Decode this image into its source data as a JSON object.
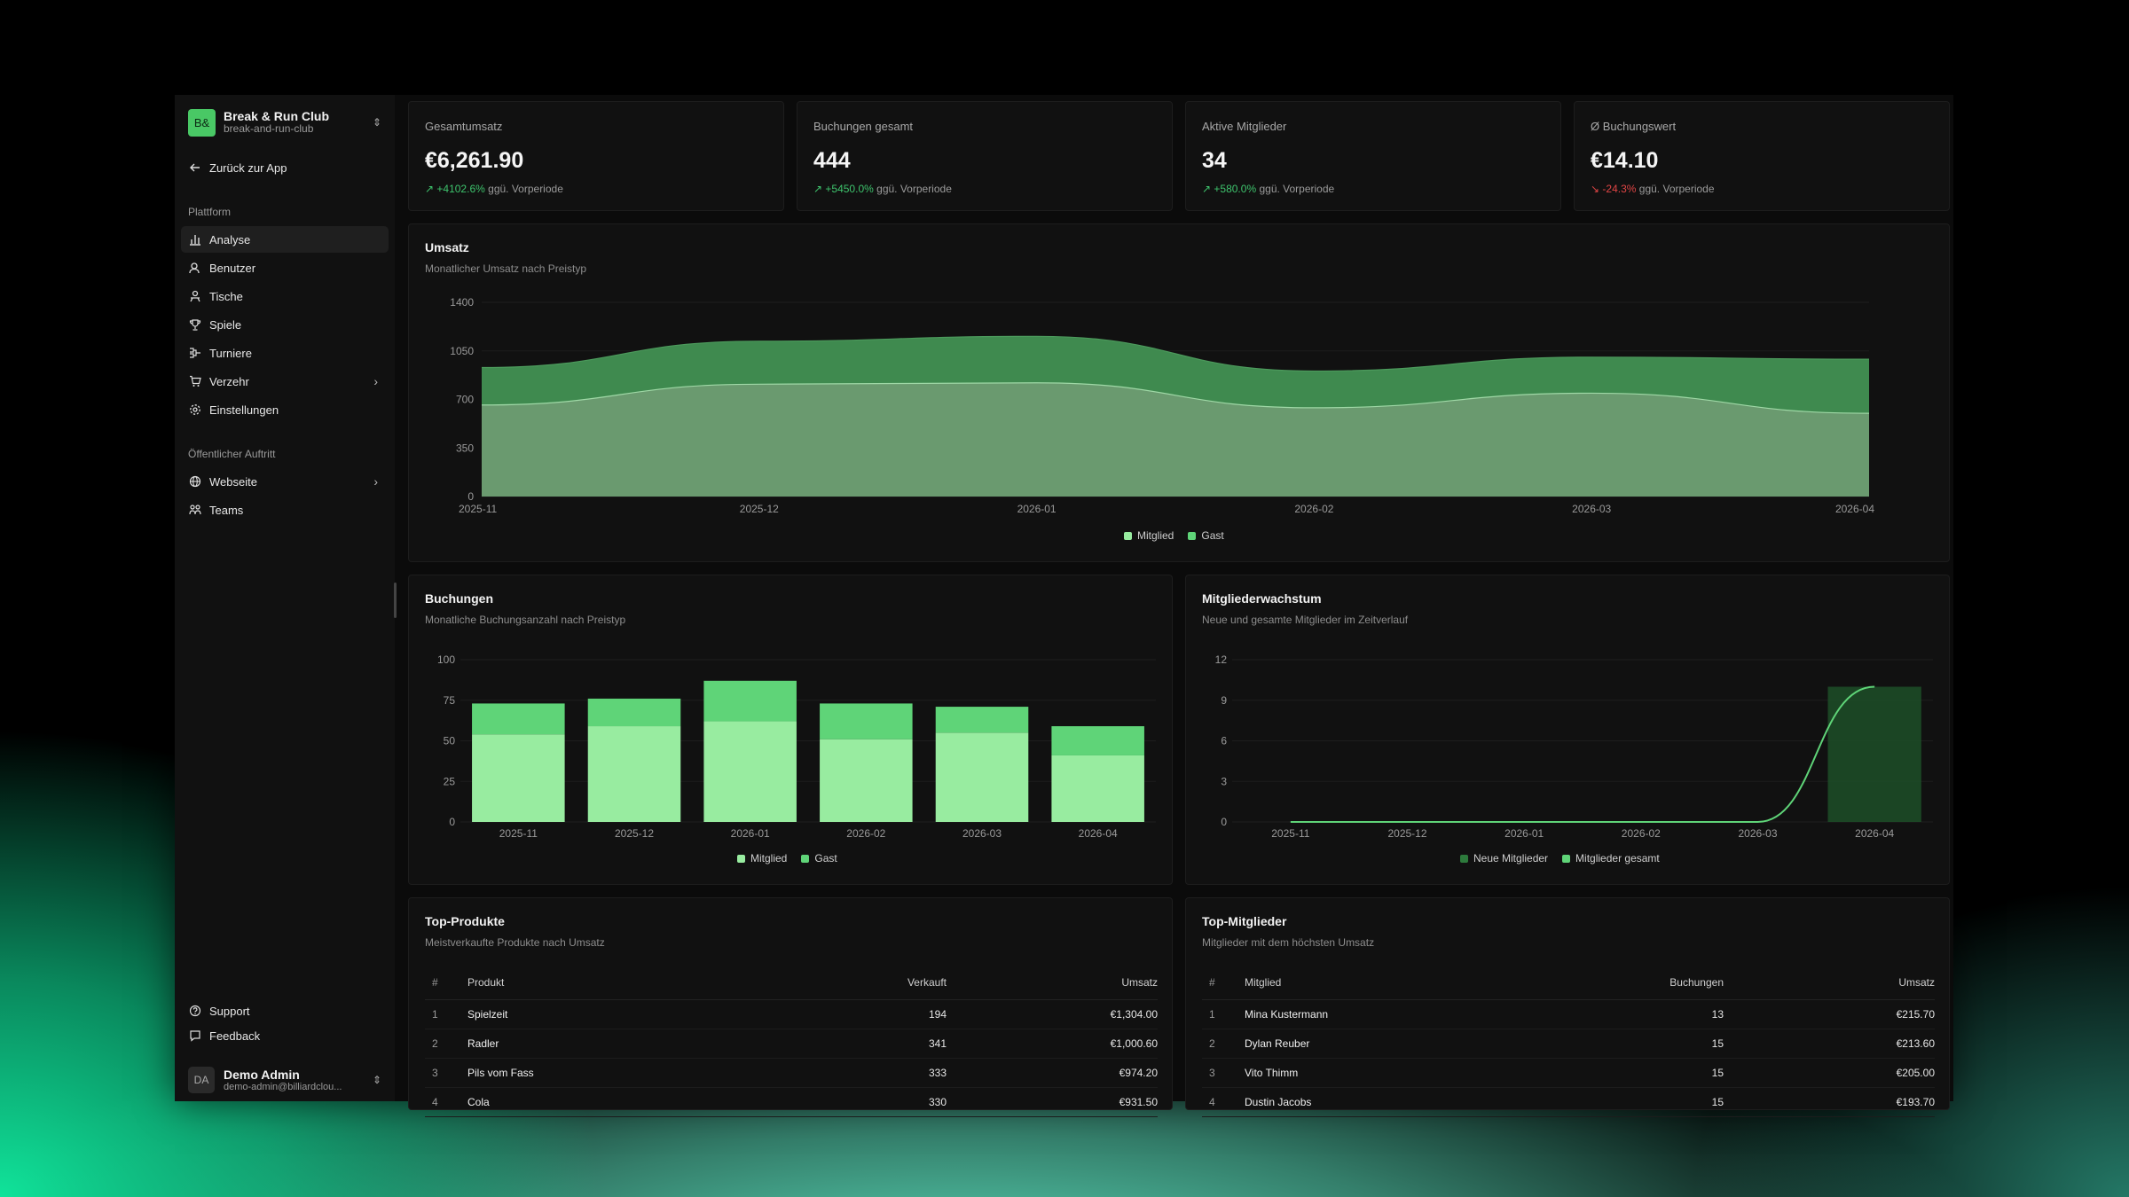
{
  "team": {
    "logo": "B&",
    "name": "Break & Run Club",
    "slug": "break-and-run-club"
  },
  "back_label": "Zurück zur App",
  "sidebar": {
    "platform_label": "Plattform",
    "platform_items": [
      {
        "label": "Analyse",
        "icon": "bar-chart-icon"
      },
      {
        "label": "Benutzer",
        "icon": "users-icon"
      },
      {
        "label": "Tische",
        "icon": "table-icon"
      },
      {
        "label": "Spiele",
        "icon": "trophy-icon"
      },
      {
        "label": "Turniere",
        "icon": "bracket-icon"
      },
      {
        "label": "Verzehr",
        "icon": "cart-icon"
      },
      {
        "label": "Einstellungen",
        "icon": "gear-icon"
      }
    ],
    "public_label": "Öffentlicher Auftritt",
    "public_items": [
      {
        "label": "Webseite",
        "icon": "globe-icon"
      },
      {
        "label": "Teams",
        "icon": "team-icon"
      }
    ],
    "support_label": "Support",
    "feedback_label": "Feedback"
  },
  "user": {
    "initials": "DA",
    "name": "Demo Admin",
    "email": "demo-admin@billiardclou..."
  },
  "kpis": [
    {
      "title": "Gesamtumsatz",
      "value": "€6,261.90",
      "delta": "+4102.6%",
      "trend": "up",
      "suffix": "ggü. Vorperiode"
    },
    {
      "title": "Buchungen gesamt",
      "value": "444",
      "delta": "+5450.0%",
      "trend": "up",
      "suffix": "ggü. Vorperiode"
    },
    {
      "title": "Aktive Mitglieder",
      "value": "34",
      "delta": "+580.0%",
      "trend": "up",
      "suffix": "ggü. Vorperiode"
    },
    {
      "title": "Ø Buchungswert",
      "value": "€14.10",
      "delta": "-24.3%",
      "trend": "down",
      "suffix": "ggü. Vorperiode"
    }
  ],
  "revenue": {
    "title": "Umsatz",
    "subtitle": "Monatlicher Umsatz nach Preistyp"
  },
  "bookings": {
    "title": "Buchungen",
    "subtitle": "Monatliche Buchungsanzahl nach Preistyp"
  },
  "growth": {
    "title": "Mitgliederwachstum",
    "subtitle": "Neue und gesamte Mitglieder im Zeitverlauf"
  },
  "chart_data": [
    {
      "id": "revenue",
      "type": "area",
      "stacked": true,
      "categories": [
        "2025-11",
        "2025-12",
        "2026-01",
        "2026-02",
        "2026-03",
        "2026-04"
      ],
      "series": [
        {
          "name": "Mitglied",
          "values": [
            270,
            310,
            335,
            265,
            260,
            390
          ],
          "color": "#3f8a4f"
        },
        {
          "name": "Gast",
          "values": [
            660,
            810,
            820,
            640,
            745,
            600
          ],
          "color": "#6a9a6f"
        }
      ],
      "ylim": [
        0,
        1400
      ],
      "yticks": [
        0,
        350,
        700,
        1050,
        1400
      ],
      "grid": true,
      "legend": "bottom"
    },
    {
      "id": "bookings",
      "type": "bar",
      "stacked": true,
      "categories": [
        "2025-11",
        "2025-12",
        "2026-01",
        "2026-02",
        "2026-03",
        "2026-04"
      ],
      "series": [
        {
          "name": "Mitglied",
          "values": [
            54,
            59,
            62,
            51,
            55,
            41
          ],
          "color": "#98eca0"
        },
        {
          "name": "Gast",
          "values": [
            19,
            17,
            25,
            22,
            16,
            18
          ],
          "color": "#5fd478"
        }
      ],
      "ylim": [
        0,
        100
      ],
      "yticks": [
        0,
        25,
        50,
        75,
        100
      ],
      "legend": "bottom"
    },
    {
      "id": "growth",
      "type": "bar",
      "categories": [
        "2025-11",
        "2025-12",
        "2026-01",
        "2026-02",
        "2026-03",
        "2026-04"
      ],
      "series": [
        {
          "name": "Neue Mitglieder",
          "values": [
            0,
            0,
            0,
            0,
            0,
            10
          ],
          "color": "#1d4f28"
        },
        {
          "name": "Mitglieder gesamt",
          "values": [
            0,
            0,
            0,
            0,
            0,
            10
          ],
          "color": "#5fd478"
        }
      ],
      "ylim": [
        0,
        12
      ],
      "yticks": [
        0,
        3,
        6,
        9,
        12
      ],
      "legend": "bottom"
    }
  ],
  "top_products": {
    "title": "Top-Produkte",
    "subtitle": "Meistverkaufte Produkte nach Umsatz",
    "headers": [
      "#",
      "Produkt",
      "Verkauft",
      "Umsatz"
    ],
    "rows": [
      [
        "1",
        "Spielzeit",
        "194",
        "€1,304.00"
      ],
      [
        "2",
        "Radler",
        "341",
        "€1,000.60"
      ],
      [
        "3",
        "Pils vom Fass",
        "333",
        "€974.20"
      ],
      [
        "4",
        "Cola",
        "330",
        "€931.50"
      ]
    ]
  },
  "top_members": {
    "title": "Top-Mitglieder",
    "subtitle": "Mitglieder mit dem höchsten Umsatz",
    "headers": [
      "#",
      "Mitglied",
      "Buchungen",
      "Umsatz"
    ],
    "rows": [
      [
        "1",
        "Mina Kustermann",
        "13",
        "€215.70"
      ],
      [
        "2",
        "Dylan Reuber",
        "15",
        "€213.60"
      ],
      [
        "3",
        "Vito Thimm",
        "15",
        "€205.00"
      ],
      [
        "4",
        "Dustin Jacobs",
        "15",
        "€193.70"
      ]
    ]
  }
}
